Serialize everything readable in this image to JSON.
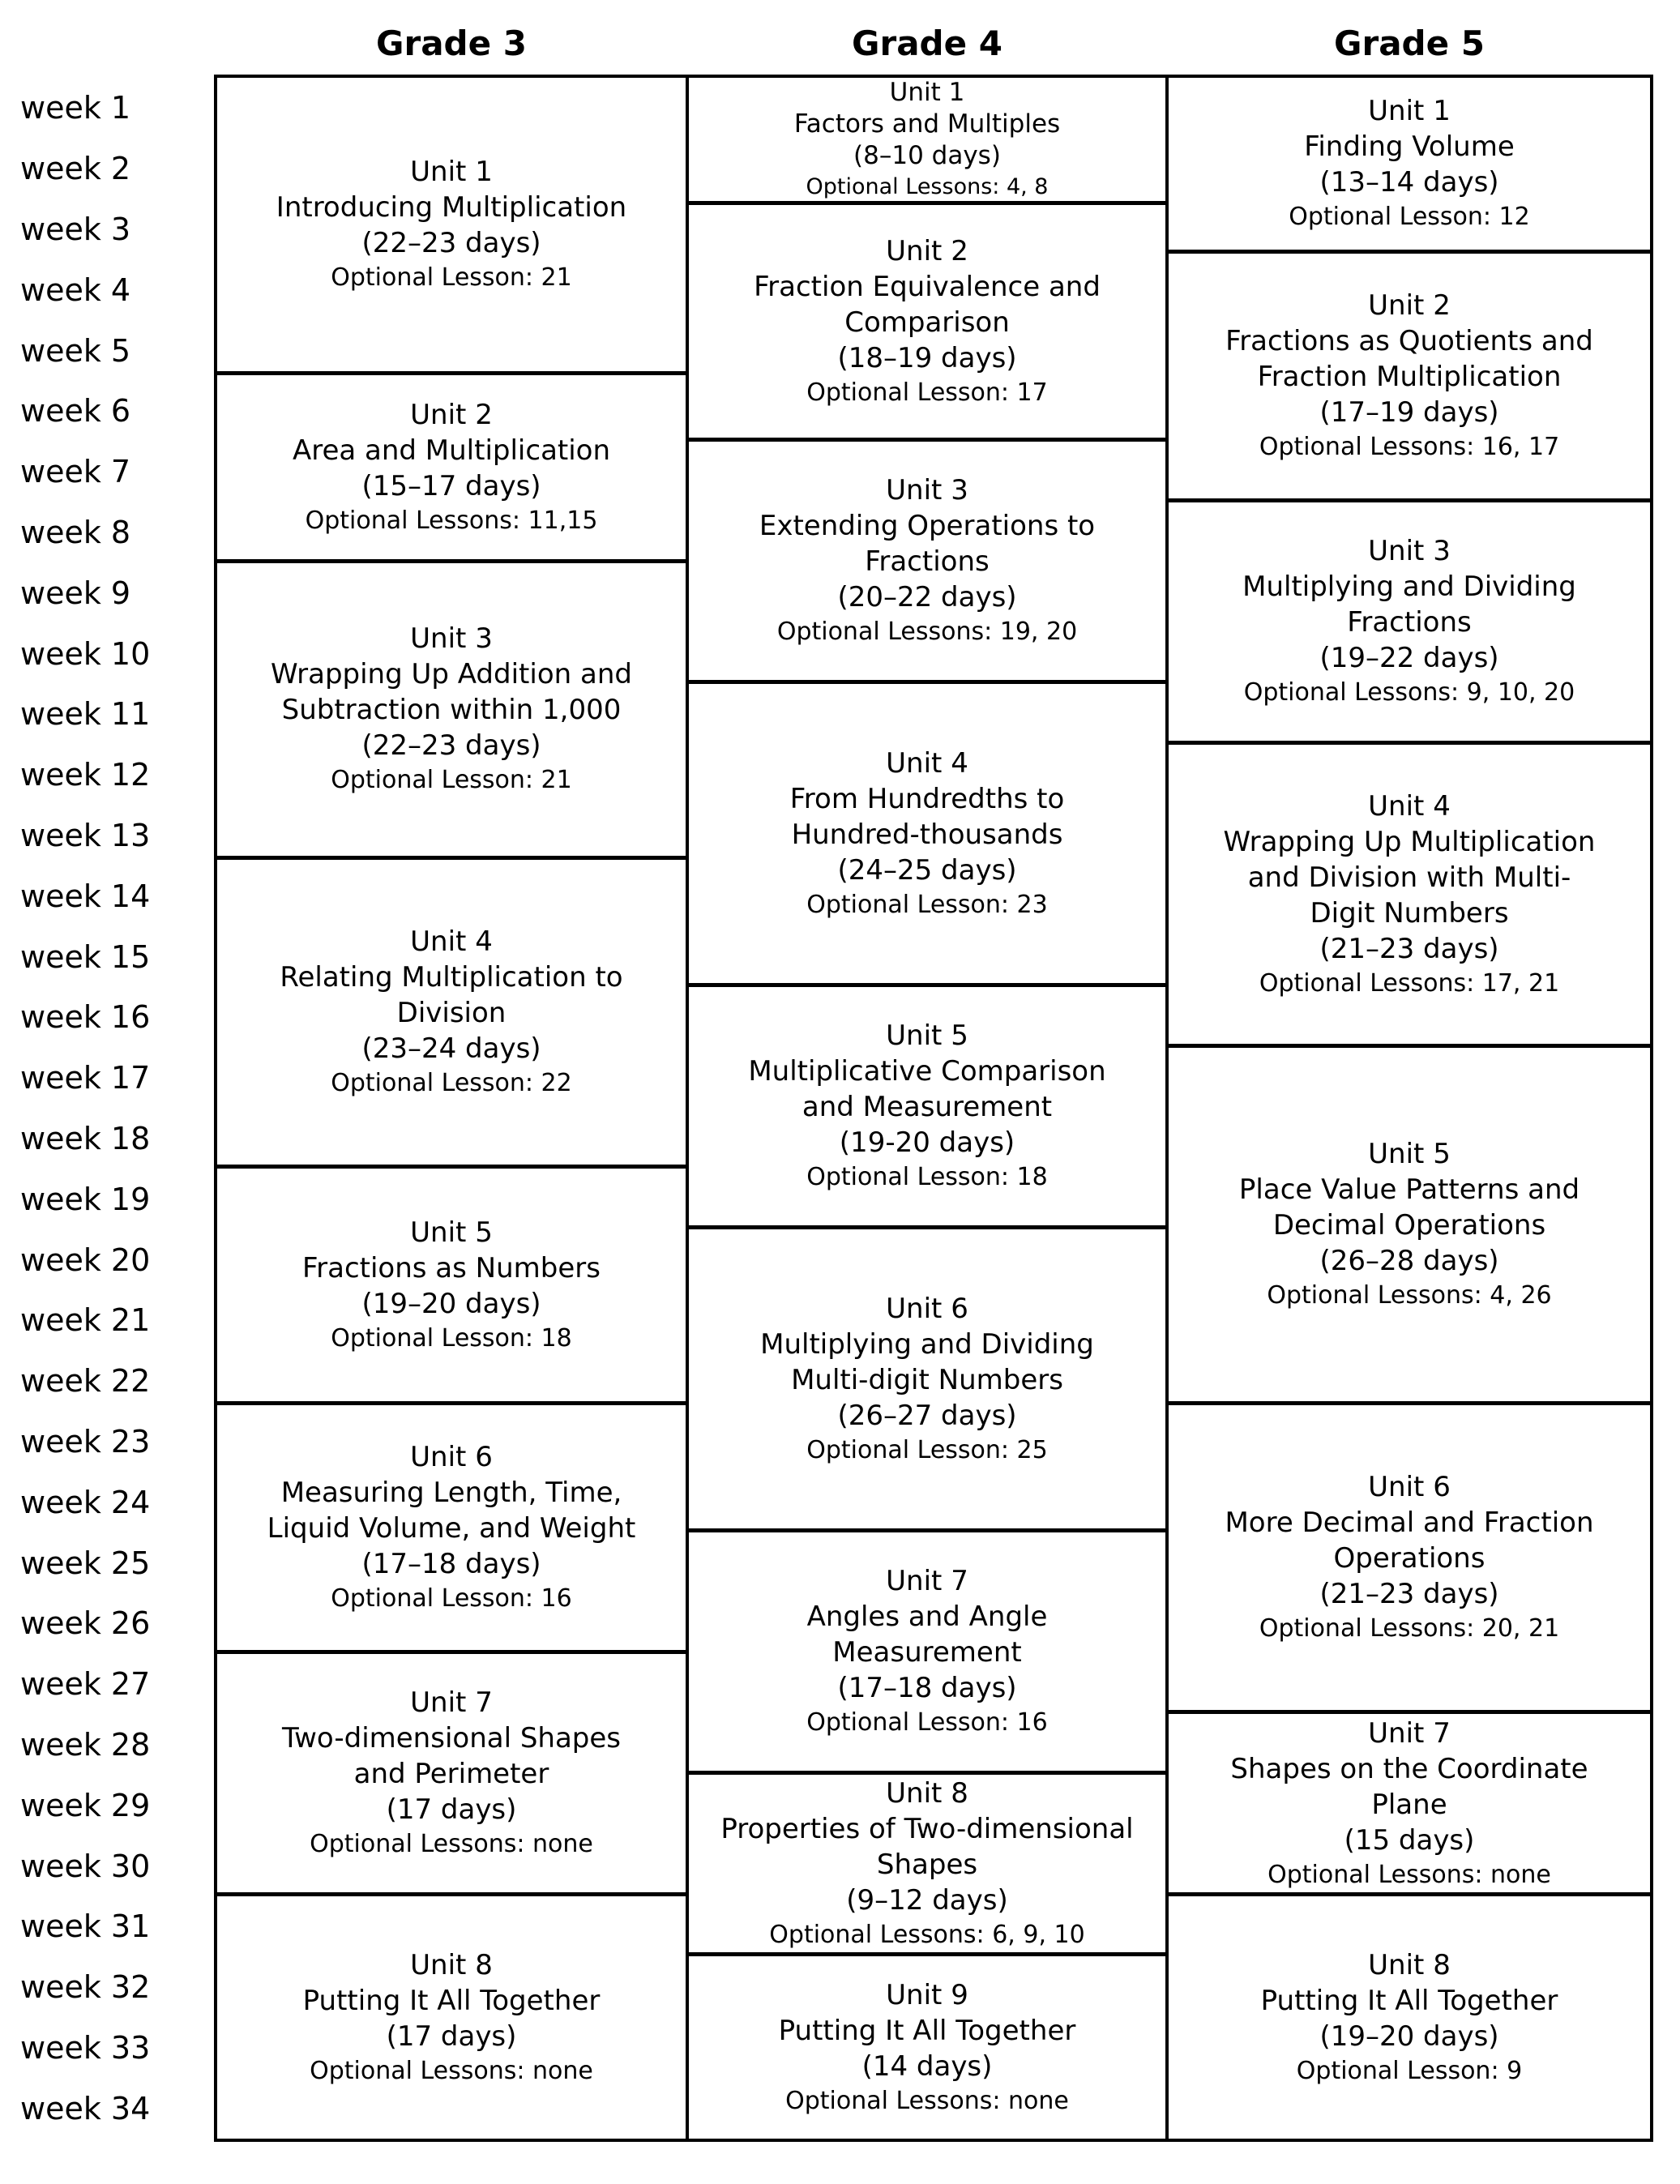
{
  "page": {
    "background": "#ffffff",
    "text_color": "#000000",
    "border_color": "#000000",
    "description": "Pacing guide table: units per grade mapped against 34 school weeks"
  },
  "week_column": {
    "labels": [
      "week 1",
      "week 2",
      "week 3",
      "week 4",
      "week 5",
      "week 6",
      "week 7",
      "week 8",
      "week 9",
      "week 10",
      "week 11",
      "week 12",
      "week 13",
      "week 14",
      "week 15",
      "week 16",
      "week 17",
      "week 18",
      "week 19",
      "week 20",
      "week 21",
      "week 22",
      "week 23",
      "week 24",
      "week 25",
      "week 26",
      "week 27",
      "week 28",
      "week 29",
      "week 30",
      "week 31",
      "week 32",
      "week 33",
      "week 34"
    ]
  },
  "grades": [
    {
      "header": "Grade 3",
      "units": [
        {
          "unit_label": "Unit 1",
          "title_lines": [
            "Introducing Multiplication"
          ],
          "days": "(22–23 days)",
          "optional": "Optional Lesson: 21",
          "week_start": 0,
          "week_end": 4.9
        },
        {
          "unit_label": "Unit 2",
          "title_lines": [
            "Area and Multiplication"
          ],
          "days": "(15–17 days)",
          "optional": "Optional Lessons: 11,15",
          "week_start": 4.9,
          "week_end": 8.0
        },
        {
          "unit_label": "Unit 3",
          "title_lines": [
            "Wrapping Up Addition and",
            "Subtraction within 1,000"
          ],
          "days": "(22–23 days)",
          "optional": "Optional Lesson: 21",
          "week_start": 8.0,
          "week_end": 12.9
        },
        {
          "unit_label": "Unit 4",
          "title_lines": [
            "Relating Multiplication to",
            "Division"
          ],
          "days": "(23–24 days)",
          "optional": "Optional Lesson: 22",
          "week_start": 12.9,
          "week_end": 18.0
        },
        {
          "unit_label": "Unit 5",
          "title_lines": [
            "Fractions as Numbers"
          ],
          "days": "(19–20 days)",
          "optional": "Optional Lesson: 18",
          "week_start": 18.0,
          "week_end": 21.9
        },
        {
          "unit_label": "Unit 6",
          "title_lines": [
            "Measuring Length, Time,",
            "Liquid Volume, and Weight"
          ],
          "days": "(17–18 days)",
          "optional": "Optional Lesson: 16",
          "week_start": 21.9,
          "week_end": 26.0
        },
        {
          "unit_label": "Unit 7",
          "title_lines": [
            "Two-dimensional Shapes",
            "and Perimeter"
          ],
          "days": "(17 days)",
          "optional": "Optional Lessons: none",
          "week_start": 26.0,
          "week_end": 30.0
        },
        {
          "unit_label": "Unit 8",
          "title_lines": [
            "Putting It All Together"
          ],
          "days": "(17 days)",
          "optional": "Optional Lessons: none",
          "week_start": 30.0,
          "week_end": 34
        }
      ]
    },
    {
      "header": "Grade 4",
      "units": [
        {
          "unit_label": "Unit 1",
          "title_lines": [
            "Factors and Multiples"
          ],
          "days": "(8–10 days)",
          "optional": "Optional Lessons: 4, 8",
          "week_start": 0,
          "week_end": 2.1,
          "compact": true
        },
        {
          "unit_label": "Unit 2",
          "title_lines": [
            "Fraction Equivalence and",
            "Comparison"
          ],
          "days": "(18–19 days)",
          "optional": "Optional Lesson: 17",
          "week_start": 2.1,
          "week_end": 6.0
        },
        {
          "unit_label": "Unit 3",
          "title_lines": [
            "Extending Operations to",
            "Fractions"
          ],
          "days": "(20–22 days)",
          "optional": "Optional Lessons: 19, 20",
          "week_start": 6.0,
          "week_end": 10.0
        },
        {
          "unit_label": "Unit 4",
          "title_lines": [
            "From Hundredths to",
            "Hundred-thousands"
          ],
          "days": "(24–25 days)",
          "optional": "Optional Lesson: 23",
          "week_start": 10.0,
          "week_end": 15.0
        },
        {
          "unit_label": "Unit 5",
          "title_lines": [
            "Multiplicative Comparison",
            "and Measurement"
          ],
          "days": "(19-20 days)",
          "optional": "Optional Lesson: 18",
          "week_start": 15.0,
          "week_end": 19.0
        },
        {
          "unit_label": "Unit 6",
          "title_lines": [
            "Multiplying and Dividing",
            "Multi-digit Numbers"
          ],
          "days": "(26–27 days)",
          "optional": "Optional Lesson: 25",
          "week_start": 19.0,
          "week_end": 24.0
        },
        {
          "unit_label": "Unit 7",
          "title_lines": [
            "Angles and Angle",
            "Measurement"
          ],
          "days": "(17–18 days)",
          "optional": "Optional Lesson: 16",
          "week_start": 24.0,
          "week_end": 28.0
        },
        {
          "unit_label": "Unit 8",
          "title_lines": [
            "Properties of Two-dimensional",
            "Shapes"
          ],
          "days": "(9–12 days)",
          "optional": "Optional Lessons: 6, 9, 10",
          "week_start": 28.0,
          "week_end": 31.0
        },
        {
          "unit_label": "Unit 9",
          "title_lines": [
            "Putting It All Together"
          ],
          "days": "(14 days)",
          "optional": "Optional Lessons: none",
          "week_start": 31.0,
          "week_end": 34
        }
      ]
    },
    {
      "header": "Grade 5",
      "units": [
        {
          "unit_label": "Unit 1",
          "title_lines": [
            "Finding Volume"
          ],
          "days": "(13–14 days)",
          "optional": "Optional Lesson: 12",
          "week_start": 0,
          "week_end": 2.9
        },
        {
          "unit_label": "Unit 2",
          "title_lines": [
            "Fractions as Quotients and",
            "Fraction Multiplication"
          ],
          "days": "(17–19 days)",
          "optional": "Optional Lessons: 16, 17",
          "week_start": 2.9,
          "week_end": 7.0
        },
        {
          "unit_label": "Unit 3",
          "title_lines": [
            "Multiplying and Dividing",
            "Fractions"
          ],
          "days": "(19–22 days)",
          "optional": "Optional Lessons: 9, 10, 20",
          "week_start": 7.0,
          "week_end": 11.0
        },
        {
          "unit_label": "Unit 4",
          "title_lines": [
            "Wrapping Up Multiplication",
            "and Division with Multi-",
            "Digit Numbers"
          ],
          "days": "(21–23 days)",
          "optional": "Optional Lessons: 17, 21",
          "week_start": 11.0,
          "week_end": 16.0
        },
        {
          "unit_label": "Unit 5",
          "title_lines": [
            "Place Value Patterns and",
            "Decimal Operations"
          ],
          "days": "(26–28 days)",
          "optional": "Optional Lessons: 4, 26",
          "week_start": 16.0,
          "week_end": 21.9
        },
        {
          "unit_label": "Unit 6",
          "title_lines": [
            "More Decimal and Fraction",
            "Operations"
          ],
          "days": "(21–23 days)",
          "optional": "Optional Lessons: 20, 21",
          "week_start": 21.9,
          "week_end": 27.0
        },
        {
          "unit_label": "Unit 7",
          "title_lines": [
            "Shapes on the Coordinate",
            "Plane"
          ],
          "days": "(15 days)",
          "optional": "Optional Lessons: none",
          "week_start": 27.0,
          "week_end": 30.0
        },
        {
          "unit_label": "Unit 8",
          "title_lines": [
            "Putting It All Together"
          ],
          "days": "(19–20 days)",
          "optional": "Optional Lesson: 9",
          "week_start": 30.0,
          "week_end": 34
        }
      ]
    }
  ]
}
